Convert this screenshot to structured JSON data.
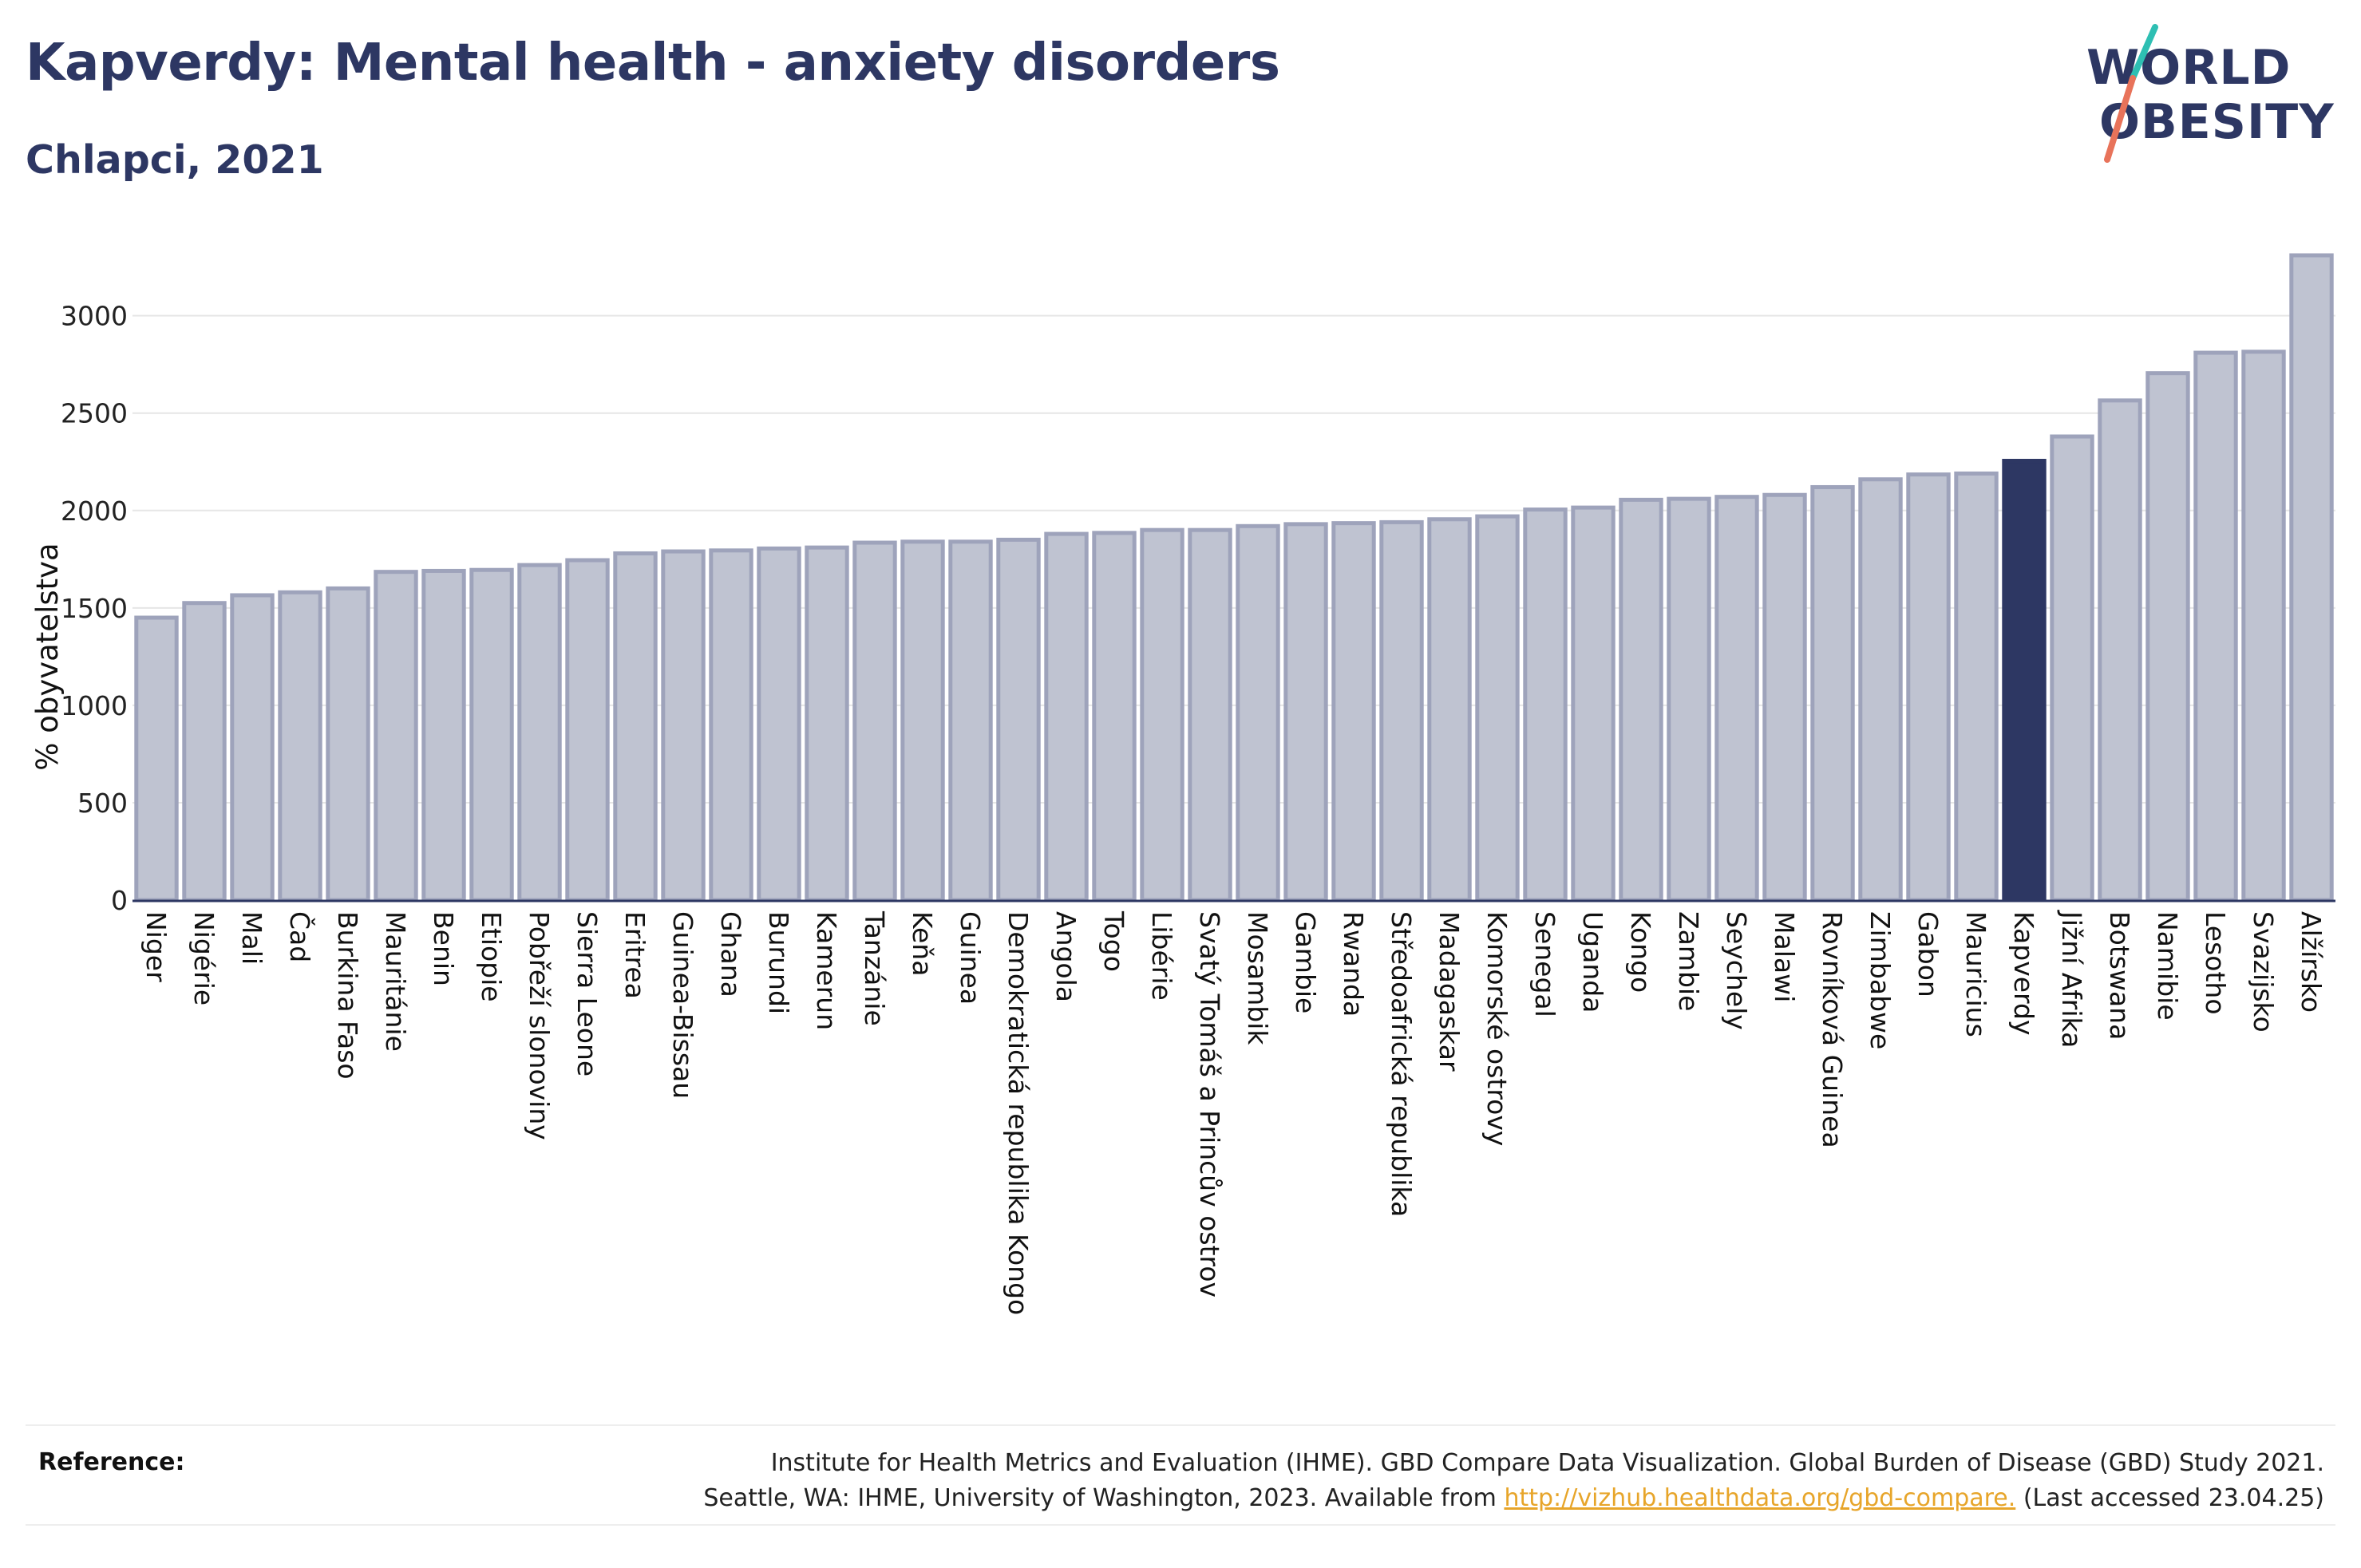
{
  "header": {
    "title": "Kapverdy: Mental health - anxiety disorders",
    "subtitle": "Chlapci, 2021"
  },
  "logo": {
    "line1": "WORLD",
    "line2": "OBESITY",
    "colors": {
      "text": "#2d3763",
      "slash_top": "#2ebfb3",
      "slash_bottom": "#e8735a"
    }
  },
  "colors": {
    "bar_fill": "#bfc3d1",
    "bar_stroke": "#9ea3bb",
    "highlight": "#2d3763",
    "grid": "#e6e6e6",
    "axis": "#2d3763"
  },
  "chart_data": {
    "type": "bar",
    "ylabel": "% obyvatelstva",
    "ylim": [
      0,
      3400
    ],
    "yticks": [
      0,
      500,
      1000,
      1500,
      2000,
      2500,
      3000
    ],
    "grid": true,
    "highlight_category": "Kapverdy",
    "categories": [
      "Niger",
      "Nigérie",
      "Mali",
      "Čad",
      "Burkina Faso",
      "Mauritánie",
      "Benin",
      "Etiopie",
      "Pobřeží slonoviny",
      "Sierra Leone",
      "Eritrea",
      "Guinea-Bissau",
      "Ghana",
      "Burundi",
      "Kamerun",
      "Tanzánie",
      "Keňa",
      "Guinea",
      "Demokratická republika Kongo",
      "Angola",
      "Togo",
      "Libérie",
      "Svatý Tomáš a Princův ostrov",
      "Mosambik",
      "Gambie",
      "Rwanda",
      "Středoafrická republika",
      "Madagaskar",
      "Komorské ostrovy",
      "Senegal",
      "Uganda",
      "Kongo",
      "Zambie",
      "Seychely",
      "Malawi",
      "Rovníková Guinea",
      "Zimbabwe",
      "Gabon",
      "Mauricius",
      "Kapverdy",
      "Jižní Afrika",
      "Botswana",
      "Namibie",
      "Lesotho",
      "Svazijsko",
      "Alžírsko"
    ],
    "values": [
      1450,
      1525,
      1565,
      1580,
      1600,
      1685,
      1690,
      1695,
      1720,
      1745,
      1780,
      1790,
      1795,
      1805,
      1810,
      1835,
      1840,
      1840,
      1850,
      1880,
      1885,
      1900,
      1900,
      1920,
      1930,
      1935,
      1940,
      1955,
      1970,
      2005,
      2015,
      2055,
      2060,
      2070,
      2080,
      2120,
      2160,
      2185,
      2190,
      2255,
      2380,
      2565,
      2705,
      2810,
      2815,
      3310
    ]
  },
  "footer": {
    "reference_label": "Reference:",
    "reference_line1": "Institute for Health Metrics and Evaluation (IHME). GBD Compare Data Visualization. Global Burden of Disease (GBD) Study 2021.",
    "reference_line2_prefix": "Seattle, WA: IHME, University of Washington, 2023. Available from ",
    "reference_link": "http://vizhub.healthdata.org/gbd-compare.",
    "reference_line2_suffix": " (Last accessed 23.04.25)"
  }
}
